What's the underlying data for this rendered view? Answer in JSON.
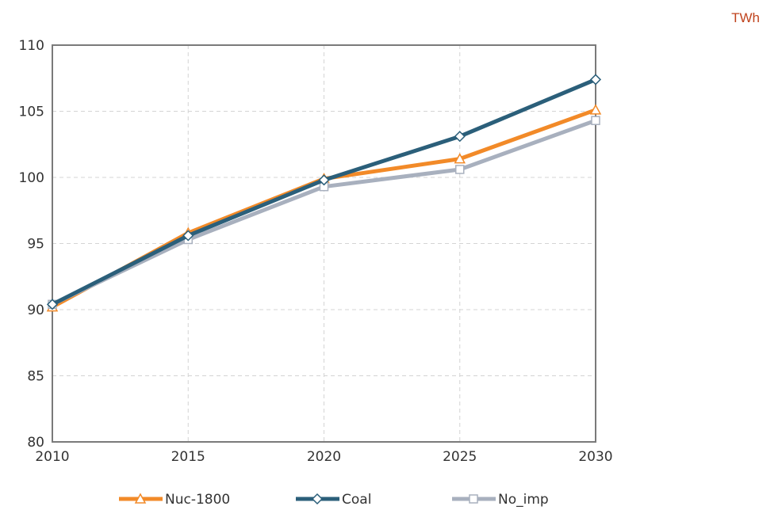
{
  "chart_data": {
    "type": "line",
    "title": "",
    "unit": "TWh",
    "xlabel": "",
    "ylabel": "",
    "x": [
      2010,
      2015,
      2020,
      2025,
      2030
    ],
    "xlim": [
      2010,
      2030
    ],
    "ylim": [
      80,
      110
    ],
    "yticks": [
      80,
      85,
      90,
      95,
      100,
      105,
      110
    ],
    "grid": true,
    "legend_position": "bottom",
    "series": [
      {
        "name": "Nuc-1800",
        "color": "#f28a28",
        "marker": "triangle",
        "values": [
          90.2,
          95.8,
          99.9,
          101.4,
          105.1
        ]
      },
      {
        "name": "Coal",
        "color": "#2b5f7a",
        "marker": "diamond",
        "values": [
          90.4,
          95.6,
          99.8,
          103.1,
          107.4
        ]
      },
      {
        "name": "No_imp",
        "color": "#a8b0be",
        "marker": "square",
        "values": [
          90.4,
          95.3,
          99.3,
          100.6,
          104.3
        ]
      }
    ]
  }
}
